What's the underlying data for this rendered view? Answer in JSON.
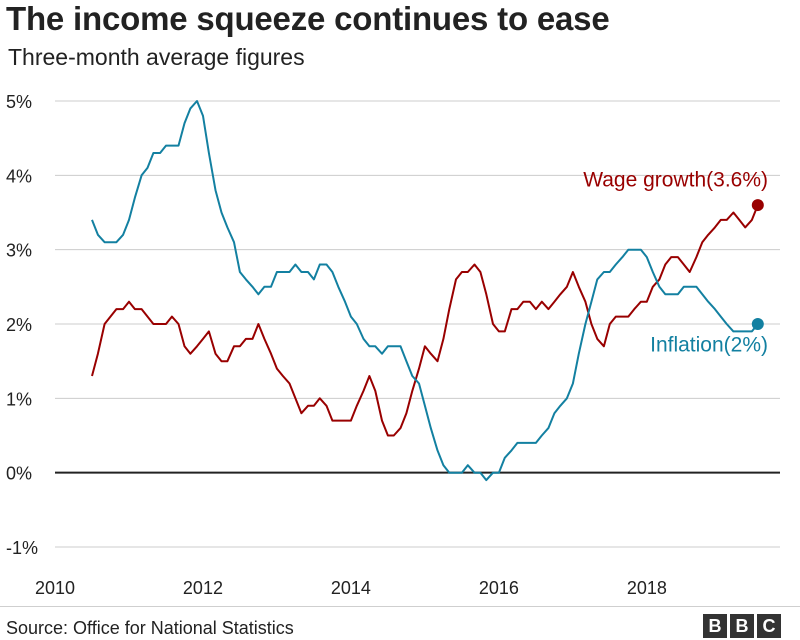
{
  "header": {
    "title": "The income squeeze continues to ease",
    "subtitle": "Three-month average figures"
  },
  "footer": {
    "source": "Source: Office for National Statistics",
    "logo": [
      "B",
      "B",
      "C"
    ]
  },
  "colors": {
    "wage": "#990000",
    "inflation": "#1380a1",
    "grid": "#cccccc",
    "zero": "#222222"
  },
  "chart_data": {
    "type": "line",
    "xlim": [
      2010,
      2019.8
    ],
    "ylim": [
      -1,
      5
    ],
    "x_ticks": [
      {
        "value": 2010,
        "label": "2010"
      },
      {
        "value": 2012,
        "label": "2012"
      },
      {
        "value": 2014,
        "label": "2014"
      },
      {
        "value": 2016,
        "label": "2016"
      },
      {
        "value": 2018,
        "label": "2018"
      }
    ],
    "y_ticks": [
      {
        "value": 5,
        "label": "5%"
      },
      {
        "value": 4,
        "label": "4%"
      },
      {
        "value": 3,
        "label": "3%"
      },
      {
        "value": 2,
        "label": "2%"
      },
      {
        "value": 1,
        "label": "1%"
      },
      {
        "value": 0,
        "label": "0%"
      },
      {
        "value": -1,
        "label": "-1%"
      }
    ],
    "grid": true,
    "series": [
      {
        "name": "Wage growth",
        "label": "Wage growth(3.6%)",
        "color": "#990000",
        "end_value": 3.6,
        "points": [
          [
            2010.5,
            1.3
          ],
          [
            2010.58,
            1.6
          ],
          [
            2010.67,
            2.0
          ],
          [
            2010.83,
            2.2
          ],
          [
            2010.92,
            2.2
          ],
          [
            2011.0,
            2.3
          ],
          [
            2011.08,
            2.2
          ],
          [
            2011.17,
            2.2
          ],
          [
            2011.33,
            2.0
          ],
          [
            2011.5,
            2.0
          ],
          [
            2011.58,
            2.1
          ],
          [
            2011.67,
            2.0
          ],
          [
            2011.75,
            1.7
          ],
          [
            2011.83,
            1.6
          ],
          [
            2011.92,
            1.7
          ],
          [
            2012.0,
            1.8
          ],
          [
            2012.08,
            1.9
          ],
          [
            2012.17,
            1.6
          ],
          [
            2012.25,
            1.5
          ],
          [
            2012.33,
            1.5
          ],
          [
            2012.42,
            1.7
          ],
          [
            2012.5,
            1.7
          ],
          [
            2012.58,
            1.8
          ],
          [
            2012.67,
            1.8
          ],
          [
            2012.75,
            2.0
          ],
          [
            2012.83,
            1.8
          ],
          [
            2012.92,
            1.6
          ],
          [
            2013.0,
            1.4
          ],
          [
            2013.08,
            1.3
          ],
          [
            2013.17,
            1.2
          ],
          [
            2013.25,
            1.0
          ],
          [
            2013.33,
            0.8
          ],
          [
            2013.42,
            0.9
          ],
          [
            2013.5,
            0.9
          ],
          [
            2013.58,
            1.0
          ],
          [
            2013.67,
            0.9
          ],
          [
            2013.75,
            0.7
          ],
          [
            2013.83,
            0.7
          ],
          [
            2013.92,
            0.7
          ],
          [
            2014.0,
            0.7
          ],
          [
            2014.08,
            0.9
          ],
          [
            2014.17,
            1.1
          ],
          [
            2014.25,
            1.3
          ],
          [
            2014.33,
            1.1
          ],
          [
            2014.42,
            0.7
          ],
          [
            2014.5,
            0.5
          ],
          [
            2014.58,
            0.5
          ],
          [
            2014.67,
            0.6
          ],
          [
            2014.75,
            0.8
          ],
          [
            2014.83,
            1.1
          ],
          [
            2014.92,
            1.4
          ],
          [
            2015.0,
            1.7
          ],
          [
            2015.08,
            1.6
          ],
          [
            2015.17,
            1.5
          ],
          [
            2015.25,
            1.8
          ],
          [
            2015.33,
            2.2
          ],
          [
            2015.42,
            2.6
          ],
          [
            2015.5,
            2.7
          ],
          [
            2015.58,
            2.7
          ],
          [
            2015.67,
            2.8
          ],
          [
            2015.75,
            2.7
          ],
          [
            2015.83,
            2.4
          ],
          [
            2015.92,
            2.0
          ],
          [
            2016.0,
            1.9
          ],
          [
            2016.08,
            1.9
          ],
          [
            2016.17,
            2.2
          ],
          [
            2016.25,
            2.2
          ],
          [
            2016.33,
            2.3
          ],
          [
            2016.42,
            2.3
          ],
          [
            2016.5,
            2.2
          ],
          [
            2016.58,
            2.3
          ],
          [
            2016.67,
            2.2
          ],
          [
            2016.75,
            2.3
          ],
          [
            2016.83,
            2.4
          ],
          [
            2016.92,
            2.5
          ],
          [
            2017.0,
            2.7
          ],
          [
            2017.08,
            2.5
          ],
          [
            2017.17,
            2.3
          ],
          [
            2017.25,
            2.0
          ],
          [
            2017.33,
            1.8
          ],
          [
            2017.42,
            1.7
          ],
          [
            2017.5,
            2.0
          ],
          [
            2017.58,
            2.1
          ],
          [
            2017.67,
            2.1
          ],
          [
            2017.75,
            2.1
          ],
          [
            2017.83,
            2.2
          ],
          [
            2017.92,
            2.3
          ],
          [
            2018.0,
            2.3
          ],
          [
            2018.08,
            2.5
          ],
          [
            2018.17,
            2.6
          ],
          [
            2018.25,
            2.8
          ],
          [
            2018.33,
            2.9
          ],
          [
            2018.42,
            2.9
          ],
          [
            2018.5,
            2.8
          ],
          [
            2018.58,
            2.7
          ],
          [
            2018.67,
            2.9
          ],
          [
            2018.75,
            3.1
          ],
          [
            2018.83,
            3.2
          ],
          [
            2018.92,
            3.3
          ],
          [
            2019.0,
            3.4
          ],
          [
            2019.08,
            3.4
          ],
          [
            2019.17,
            3.5
          ],
          [
            2019.25,
            3.4
          ],
          [
            2019.33,
            3.3
          ],
          [
            2019.42,
            3.4
          ],
          [
            2019.5,
            3.6
          ]
        ]
      },
      {
        "name": "Inflation",
        "label": "Inflation(2%)",
        "color": "#1380a1",
        "end_value": 2.0,
        "points": [
          [
            2010.5,
            3.4
          ],
          [
            2010.58,
            3.2
          ],
          [
            2010.67,
            3.1
          ],
          [
            2010.75,
            3.1
          ],
          [
            2010.83,
            3.1
          ],
          [
            2010.92,
            3.2
          ],
          [
            2011.0,
            3.4
          ],
          [
            2011.08,
            3.7
          ],
          [
            2011.17,
            4.0
          ],
          [
            2011.25,
            4.1
          ],
          [
            2011.33,
            4.3
          ],
          [
            2011.42,
            4.3
          ],
          [
            2011.5,
            4.4
          ],
          [
            2011.58,
            4.4
          ],
          [
            2011.67,
            4.4
          ],
          [
            2011.75,
            4.7
          ],
          [
            2011.83,
            4.9
          ],
          [
            2011.92,
            5.0
          ],
          [
            2012.0,
            4.8
          ],
          [
            2012.08,
            4.3
          ],
          [
            2012.17,
            3.8
          ],
          [
            2012.25,
            3.5
          ],
          [
            2012.33,
            3.3
          ],
          [
            2012.42,
            3.1
          ],
          [
            2012.5,
            2.7
          ],
          [
            2012.58,
            2.6
          ],
          [
            2012.67,
            2.5
          ],
          [
            2012.75,
            2.4
          ],
          [
            2012.83,
            2.5
          ],
          [
            2012.92,
            2.5
          ],
          [
            2013.0,
            2.7
          ],
          [
            2013.08,
            2.7
          ],
          [
            2013.17,
            2.7
          ],
          [
            2013.25,
            2.8
          ],
          [
            2013.33,
            2.7
          ],
          [
            2013.42,
            2.7
          ],
          [
            2013.5,
            2.6
          ],
          [
            2013.58,
            2.8
          ],
          [
            2013.67,
            2.8
          ],
          [
            2013.75,
            2.7
          ],
          [
            2013.83,
            2.5
          ],
          [
            2013.92,
            2.3
          ],
          [
            2014.0,
            2.1
          ],
          [
            2014.08,
            2.0
          ],
          [
            2014.17,
            1.8
          ],
          [
            2014.25,
            1.7
          ],
          [
            2014.33,
            1.7
          ],
          [
            2014.42,
            1.6
          ],
          [
            2014.5,
            1.7
          ],
          [
            2014.58,
            1.7
          ],
          [
            2014.67,
            1.7
          ],
          [
            2014.75,
            1.5
          ],
          [
            2014.83,
            1.3
          ],
          [
            2014.92,
            1.2
          ],
          [
            2015.0,
            0.9
          ],
          [
            2015.08,
            0.6
          ],
          [
            2015.17,
            0.3
          ],
          [
            2015.25,
            0.1
          ],
          [
            2015.33,
            0.0
          ],
          [
            2015.42,
            0.0
          ],
          [
            2015.5,
            0.0
          ],
          [
            2015.58,
            0.1
          ],
          [
            2015.67,
            0.0
          ],
          [
            2015.75,
            0.0
          ],
          [
            2015.83,
            -0.1
          ],
          [
            2015.92,
            0.0
          ],
          [
            2016.0,
            0.0
          ],
          [
            2016.08,
            0.2
          ],
          [
            2016.17,
            0.3
          ],
          [
            2016.25,
            0.4
          ],
          [
            2016.33,
            0.4
          ],
          [
            2016.42,
            0.4
          ],
          [
            2016.5,
            0.4
          ],
          [
            2016.58,
            0.5
          ],
          [
            2016.67,
            0.6
          ],
          [
            2016.75,
            0.8
          ],
          [
            2016.83,
            0.9
          ],
          [
            2016.92,
            1.0
          ],
          [
            2017.0,
            1.2
          ],
          [
            2017.08,
            1.6
          ],
          [
            2017.17,
            2.0
          ],
          [
            2017.25,
            2.3
          ],
          [
            2017.33,
            2.6
          ],
          [
            2017.42,
            2.7
          ],
          [
            2017.5,
            2.7
          ],
          [
            2017.58,
            2.8
          ],
          [
            2017.67,
            2.9
          ],
          [
            2017.75,
            3.0
          ],
          [
            2017.83,
            3.0
          ],
          [
            2017.92,
            3.0
          ],
          [
            2018.0,
            2.9
          ],
          [
            2018.08,
            2.7
          ],
          [
            2018.17,
            2.5
          ],
          [
            2018.25,
            2.4
          ],
          [
            2018.33,
            2.4
          ],
          [
            2018.42,
            2.4
          ],
          [
            2018.5,
            2.5
          ],
          [
            2018.58,
            2.5
          ],
          [
            2018.67,
            2.5
          ],
          [
            2018.75,
            2.4
          ],
          [
            2018.83,
            2.3
          ],
          [
            2018.92,
            2.2
          ],
          [
            2019.0,
            2.1
          ],
          [
            2019.08,
            2.0
          ],
          [
            2019.17,
            1.9
          ],
          [
            2019.25,
            1.9
          ],
          [
            2019.33,
            1.9
          ],
          [
            2019.42,
            1.9
          ],
          [
            2019.5,
            2.0
          ]
        ]
      }
    ]
  }
}
